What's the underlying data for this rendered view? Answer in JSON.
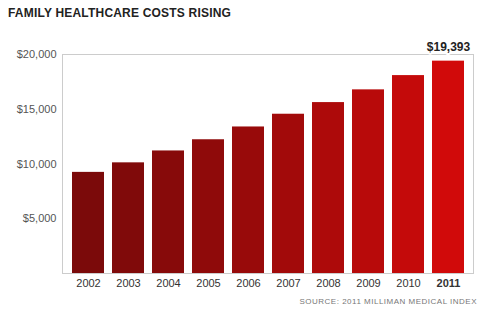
{
  "chart_data": {
    "type": "bar",
    "title": "FAMILY HEALTHCARE COSTS RISING",
    "caption": "SOURCE: 2011 MILLIMAN MEDICAL INDEX",
    "categories": [
      "2002",
      "2003",
      "2004",
      "2005",
      "2006",
      "2007",
      "2008",
      "2009",
      "2010",
      "2011"
    ],
    "values": [
      9235,
      10106,
      11192,
      12214,
      13382,
      14545,
      15609,
      16771,
      18074,
      19393
    ],
    "colors": [
      "#7b0a0a",
      "#800a0a",
      "#870a0a",
      "#8f0a0a",
      "#980a0a",
      "#a20a0a",
      "#ad0a0a",
      "#b80a0a",
      "#c40a0a",
      "#d10a0a"
    ],
    "ylim": [
      0,
      20000
    ],
    "yticks": [
      {
        "value": 5000,
        "label": "$5,000"
      },
      {
        "value": 10000,
        "label": "$10,000"
      },
      {
        "value": 15000,
        "label": "$15,000"
      },
      {
        "value": 20000,
        "label": "$20,000"
      }
    ],
    "grid": false,
    "annotations": [
      {
        "text": "$19,393",
        "x": "2011",
        "y": 19393
      }
    ]
  }
}
